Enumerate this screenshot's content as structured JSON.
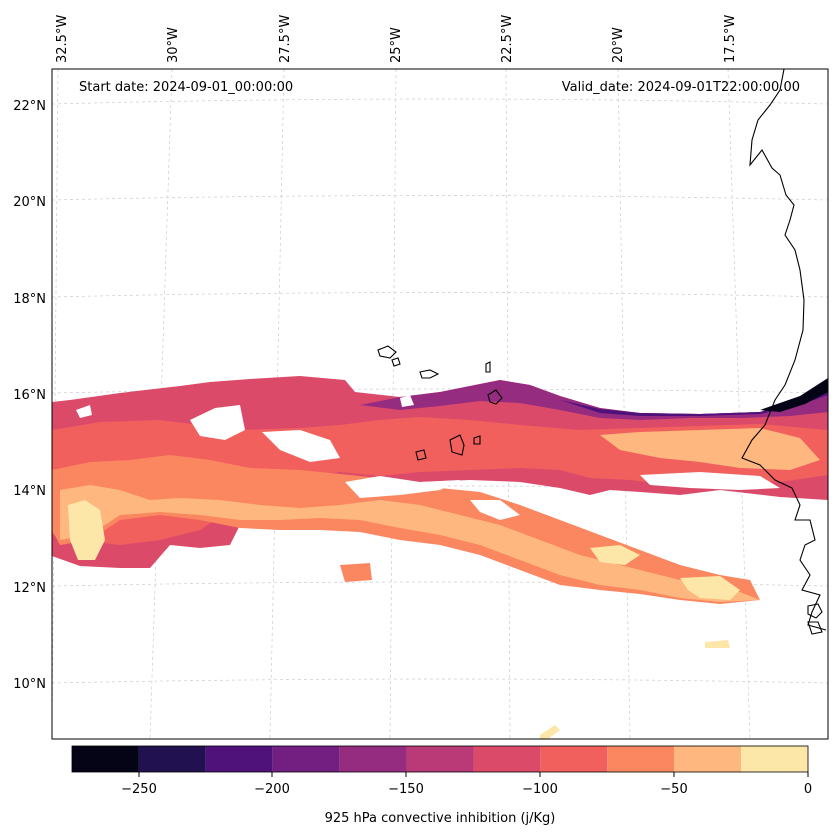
{
  "map": {
    "start_label": "Start date: 2024-09-01_00:00:00",
    "valid_label": "Valid_date: 2024-09-01T22:00:00.00",
    "lon_labels": [
      "32.5°W",
      "30°W",
      "27.5°W",
      "25°W",
      "22.5°W",
      "20°W",
      "17.5°W"
    ],
    "lat_labels": [
      "22°N",
      "20°N",
      "18°N",
      "16°N",
      "14°N",
      "12°N",
      "10°N"
    ],
    "variable": "925 hPa convective inhibition (j/Kg)"
  },
  "colorbar": {
    "ticks": [
      "−250",
      "−200",
      "−150",
      "−100",
      "−50",
      "0"
    ],
    "levels": [
      -275,
      -250,
      -225,
      -200,
      -175,
      -150,
      -125,
      -100,
      -75,
      -50,
      -25,
      0
    ],
    "colors": [
      "#050416",
      "#221150",
      "#4f127b",
      "#731f81",
      "#962c80",
      "#b93a76",
      "#dc4a6a",
      "#f1605d",
      "#fb8761",
      "#feb77e",
      "#fde7a8"
    ]
  }
}
